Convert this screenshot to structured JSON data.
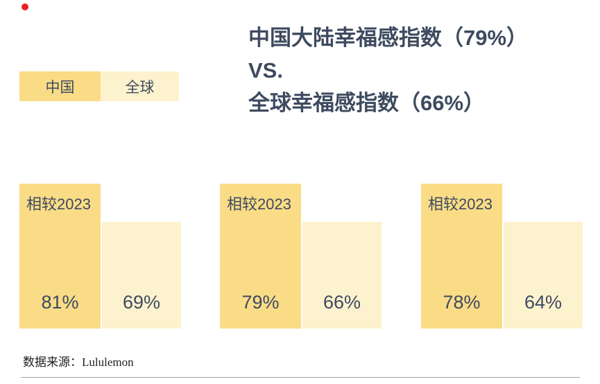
{
  "colors": {
    "china_bar": "#fadc87",
    "global_bar": "#fdf2ce",
    "text": "#3d4a5f",
    "dot": "#ec2024",
    "divider": "#a3a3a3"
  },
  "title": {
    "line1": "中国大陆幸福感指数（79%）",
    "line2": "VS.",
    "line3": "全球幸福感指数（66%）"
  },
  "legend": {
    "items": [
      {
        "label": "中国",
        "color": "#fadc87"
      },
      {
        "label": "全球",
        "color": "#fdf2ce"
      }
    ]
  },
  "chart_data": {
    "type": "bar",
    "title": "中国大陆幸福感指数（79%） VS. 全球幸福感指数（66%）",
    "legend": [
      "中国",
      "全球"
    ],
    "legend_position": "top-left",
    "annotation": "相较2023",
    "series": [
      {
        "name": "中国",
        "color": "#fadc87",
        "values": [
          81,
          79,
          78
        ]
      },
      {
        "name": "全球",
        "color": "#fdf2ce",
        "values": [
          69,
          66,
          64
        ]
      }
    ],
    "value_unit": "%",
    "grid": false,
    "axes_shown": false,
    "note": "bar heights identical across groups; values shown as in-bar labels"
  },
  "groups": [
    {
      "annotation": "相较2023",
      "china_value": "81%",
      "global_value": "69%"
    },
    {
      "annotation": "相较2023",
      "china_value": "79%",
      "global_value": "66%"
    },
    {
      "annotation": "相较2023",
      "china_value": "78%",
      "global_value": "64%"
    }
  ],
  "footer": {
    "source": "数据来源：Lululemon"
  }
}
